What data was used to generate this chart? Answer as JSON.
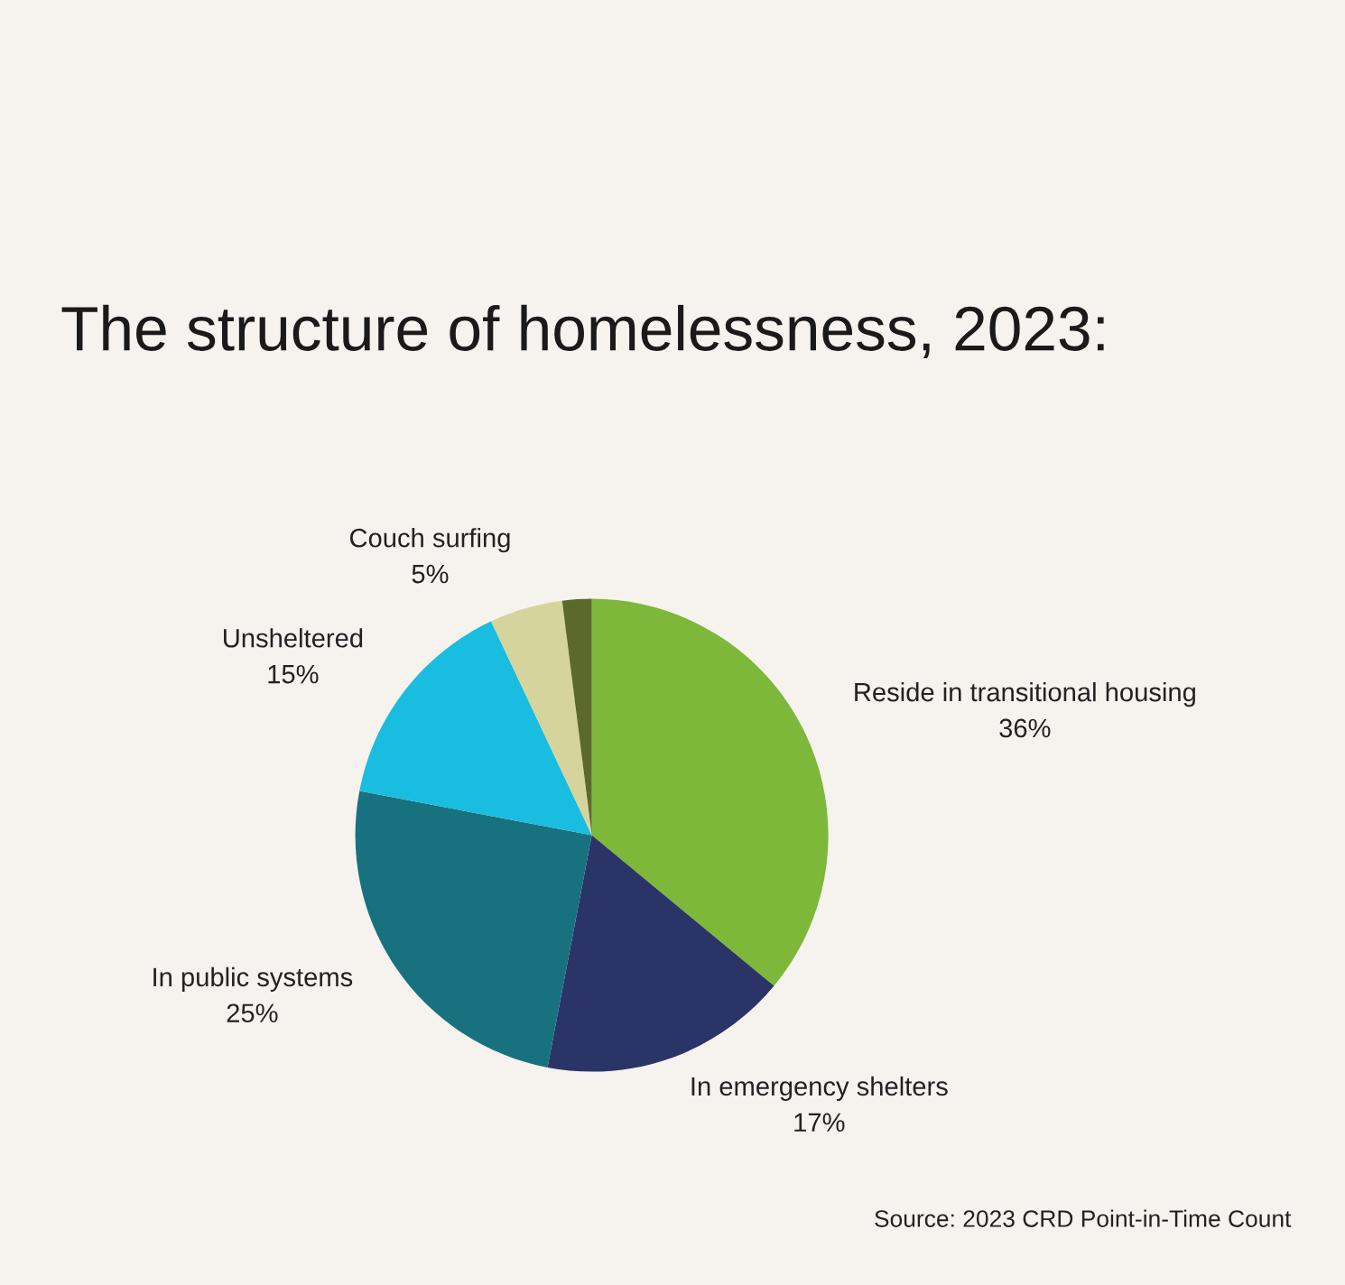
{
  "chart_data": {
    "type": "pie",
    "title": "The structure of homelessness, 2023:",
    "categories": [
      "Reside in transitional housing",
      "In emergency shelters",
      "In public systems",
      "Unsheltered",
      "Couch surfing",
      null
    ],
    "values": [
      36,
      17,
      25,
      15,
      5,
      2
    ],
    "value_labels": [
      "36%",
      "17%",
      "25%",
      "15%",
      "5%",
      null
    ],
    "colors": [
      "#7db83a",
      "#2b3467",
      "#17717f",
      "#19bde0",
      "#d5d49c",
      "#5b6a2c"
    ],
    "annotations": [
      "Source: 2023 CRD Point-in-Time Count"
    ]
  }
}
